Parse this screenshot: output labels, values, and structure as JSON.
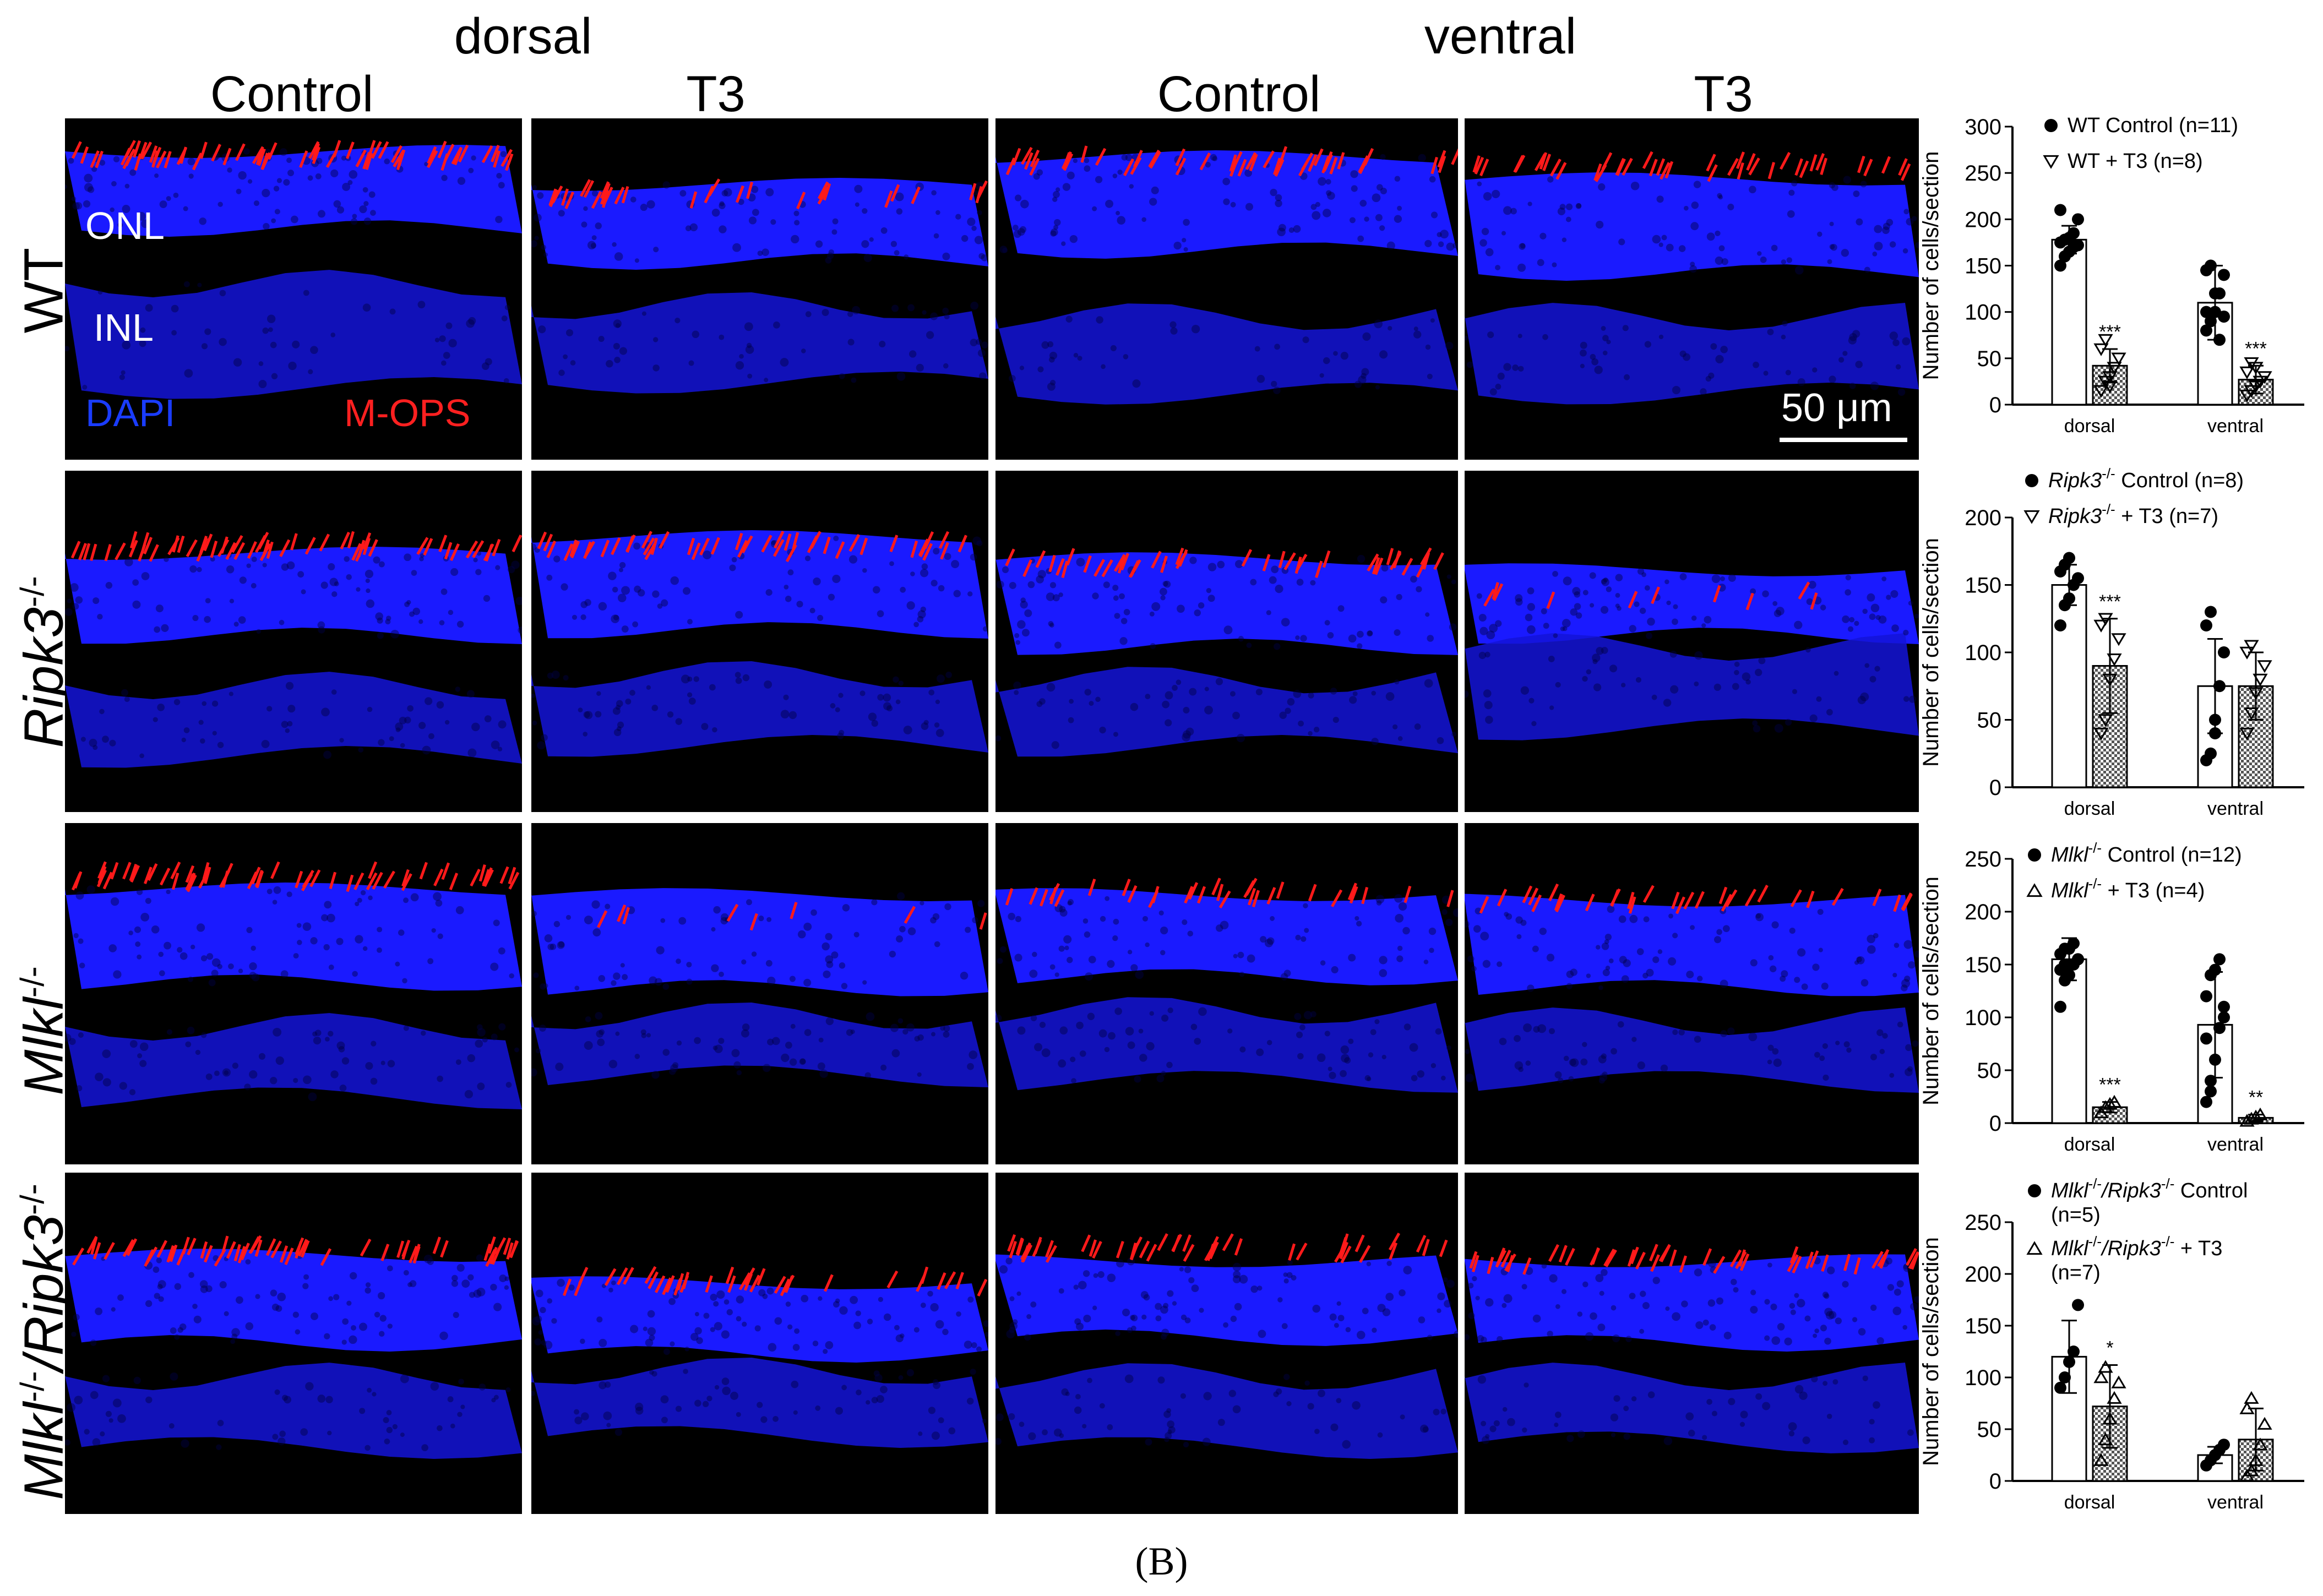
{
  "header": {
    "region_dorsal": "dorsal",
    "region_ventral": "ventral",
    "col_control": "Control",
    "col_t3": "T3"
  },
  "rows": [
    {
      "label": "WT"
    },
    {
      "label": "Ripk3",
      "sup": "-/-"
    },
    {
      "label": "Mlkl",
      "sup": "-/-"
    },
    {
      "label_part1": "Mlkl",
      "sup1": "-/-",
      "sep": "/",
      "label_part2": "Ripk3",
      "sup2": "-/-"
    }
  ],
  "panel_annotations": {
    "onl": "ONL",
    "inl": "INL",
    "dapi": "DAPI",
    "mops": "M-OPS",
    "scale_bar": "50 μm"
  },
  "colors": {
    "dapi": "#1a1aff",
    "mops": "#ff1a1a",
    "background": "#000000"
  },
  "caption": "(B)",
  "chart_data": [
    {
      "type": "bar",
      "ylabel": "Number of cells/section",
      "categories": [
        "dorsal",
        "ventral"
      ],
      "ylim": [
        0,
        300
      ],
      "yticks": [
        0,
        50,
        100,
        150,
        200,
        250,
        300
      ],
      "legend": [
        {
          "marker": "circle",
          "text": "WT Control (n=11)"
        },
        {
          "marker": "triangle-down",
          "text": "WT + T3 (n=8)"
        }
      ],
      "series": [
        {
          "name": "WT Control (n=11)",
          "values": [
            178,
            110
          ],
          "err": [
            15,
            40
          ],
          "fill": "white",
          "points": [
            [
              150,
              160,
              165,
              170,
              172,
              175,
              178,
              180,
              185,
              200,
              210
            ],
            [
              80,
              90,
              100,
              120,
              140,
              145,
              150,
              120,
              70,
              95,
              100
            ]
          ]
        },
        {
          "name": "WT + T3 (n=8)",
          "values": [
            42,
            27
          ],
          "err": [
            18,
            15
          ],
          "fill": "checker",
          "points": [
            [
              15,
              25,
              30,
              40,
              50,
              60,
              70,
              20
            ],
            [
              10,
              15,
              20,
              25,
              30,
              35,
              45,
              40
            ]
          ]
        }
      ],
      "significance": [
        "***",
        "***"
      ]
    },
    {
      "type": "bar",
      "ylabel": "Number of cells/section",
      "categories": [
        "dorsal",
        "ventral"
      ],
      "ylim": [
        0,
        200
      ],
      "yticks": [
        0,
        50,
        100,
        150,
        200
      ],
      "legend": [
        {
          "marker": "circle",
          "italic": "Ripk3",
          "sup": "-/-",
          "text": " Control (n=8)"
        },
        {
          "marker": "triangle-down",
          "italic": "Ripk3",
          "sup": "-/-",
          "text": " + T3 (n=7)"
        }
      ],
      "series": [
        {
          "name": "Ripk3-/- Control (n=8)",
          "values": [
            150,
            75
          ],
          "err": [
            15,
            35
          ],
          "fill": "white",
          "points": [
            [
              120,
              135,
              140,
              150,
              155,
              160,
              165,
              170
            ],
            [
              20,
              25,
              50,
              75,
              100,
              120,
              130,
              40
            ]
          ]
        },
        {
          "name": "Ripk3-/- + T3 (n=7)",
          "values": [
            90,
            75
          ],
          "err": [
            35,
            25
          ],
          "fill": "checker",
          "points": [
            [
              40,
              50,
              80,
              95,
              110,
              120,
              125
            ],
            [
              40,
              55,
              70,
              80,
              90,
              100,
              105
            ]
          ]
        }
      ],
      "significance": [
        "***",
        ""
      ]
    },
    {
      "type": "bar",
      "ylabel": "Number of cells/section",
      "categories": [
        "dorsal",
        "ventral"
      ],
      "ylim": [
        0,
        250
      ],
      "yticks": [
        0,
        50,
        100,
        150,
        200,
        250
      ],
      "legend": [
        {
          "marker": "circle",
          "italic": "Mlkl",
          "sup": "-/-",
          "text": " Control (n=12)"
        },
        {
          "marker": "triangle-up",
          "italic": "Mlkl",
          "sup": "-/-",
          "text": " + T3 (n=4)"
        }
      ],
      "series": [
        {
          "name": "Mlkl-/- Control (n=12)",
          "values": [
            155,
            93
          ],
          "err": [
            20,
            50
          ],
          "fill": "white",
          "points": [
            [
              110,
              135,
              140,
              150,
              155,
              160,
              165,
              165,
              170,
              155,
              145,
              150
            ],
            [
              20,
              30,
              60,
              90,
              110,
              120,
              140,
              145,
              155,
              100,
              80,
              40
            ]
          ]
        },
        {
          "name": "Mlkl-/- + T3 (n=4)",
          "values": [
            15,
            5
          ],
          "err": [
            5,
            3
          ],
          "fill": "checker",
          "points": [
            [
              10,
              15,
              18,
              20
            ],
            [
              2,
              4,
              6,
              8
            ]
          ]
        }
      ],
      "significance": [
        "***",
        "**"
      ]
    },
    {
      "type": "bar",
      "ylabel": "Number of cells/section",
      "categories": [
        "dorsal",
        "ventral"
      ],
      "ylim": [
        0,
        250
      ],
      "yticks": [
        0,
        50,
        100,
        150,
        200,
        250
      ],
      "legend": [
        {
          "marker": "circle",
          "italic": "Mlkl",
          "sup": "-/-",
          "italic2": "/Ripk3",
          "sup2": "-/-",
          "text": " Control",
          "line2": "(n=5)"
        },
        {
          "marker": "triangle-up",
          "italic": "Mlkl",
          "sup": "-/-",
          "italic2": "/Ripk3",
          "sup2": "-/-",
          "text": " + T3",
          "line2": "(n=7)"
        }
      ],
      "series": [
        {
          "name": "Mlkl-/-/Ripk3-/- Control (n=5)",
          "values": [
            120,
            25
          ],
          "err": [
            35,
            8
          ],
          "fill": "white",
          "points": [
            [
              90,
              100,
              115,
              125,
              170
            ],
            [
              15,
              20,
              25,
              30,
              35
            ]
          ]
        },
        {
          "name": "Mlkl-/-/Ripk3-/- + T3 (n=7)",
          "values": [
            72,
            40
          ],
          "err": [
            40,
            30
          ],
          "fill": "checker",
          "points": [
            [
              20,
              40,
              60,
              80,
              95,
              100,
              110
            ],
            [
              5,
              10,
              20,
              35,
              55,
              70,
              80
            ]
          ]
        }
      ],
      "significance": [
        "*",
        ""
      ]
    }
  ]
}
